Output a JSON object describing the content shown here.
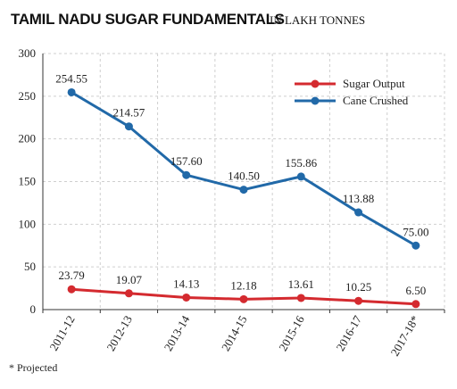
{
  "chart_data": {
    "type": "line",
    "title": "TAMIL NADU SUGAR FUNDAMENTALS",
    "subtitle": "IN LAKH TONNES",
    "xlabel": "",
    "ylabel": "",
    "categories": [
      "2011-12",
      "2012-13",
      "2013-14",
      "2014-15",
      "2015-16",
      "2016-17",
      "2017-18*"
    ],
    "ylim": [
      0,
      300
    ],
    "yticks": [
      0,
      50,
      100,
      150,
      200,
      250,
      300
    ],
    "grid": true,
    "legend_position": "top-right",
    "series": [
      {
        "name": "Sugar Output",
        "color": "#d42a2f",
        "values": [
          23.79,
          19.07,
          14.13,
          12.18,
          13.61,
          10.25,
          6.5
        ],
        "labels": [
          "23.79",
          "19.07",
          "14.13",
          "12.18",
          "13.61",
          "10.25",
          "6.50"
        ]
      },
      {
        "name": "Cane Crushed",
        "color": "#2169a8",
        "values": [
          254.55,
          214.57,
          157.6,
          140.5,
          155.86,
          113.88,
          75.0
        ],
        "labels": [
          "254.55",
          "214.57",
          "157.60",
          "140.50",
          "155.86",
          "113.88",
          "75.00"
        ]
      }
    ],
    "footnote": "* Projected"
  }
}
